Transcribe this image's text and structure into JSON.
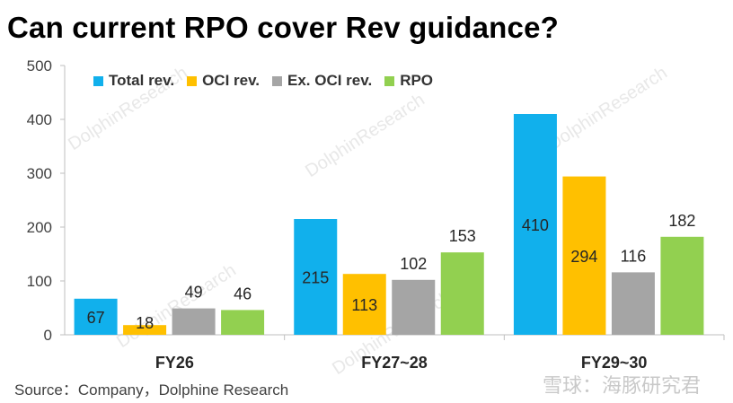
{
  "title": "Can current RPO cover Rev guidance?",
  "source": "Source：Company，Dolphine Research",
  "brand": "雪球：海豚研究君",
  "watermark": "DolphinResearch",
  "chart_data": {
    "type": "bar",
    "categories": [
      "FY26",
      "FY27~28",
      "FY29~30"
    ],
    "series": [
      {
        "name": "Total rev.",
        "color": "#11B0EC",
        "values": [
          67,
          215,
          410
        ],
        "label_inside": true
      },
      {
        "name": "OCI rev.",
        "color": "#FFC000",
        "values": [
          18,
          113,
          294
        ],
        "label_inside": true
      },
      {
        "name": "Ex. OCI rev.",
        "color": "#A5A5A5",
        "values": [
          49,
          102,
          116
        ],
        "label_inside": false
      },
      {
        "name": "RPO",
        "color": "#92D050",
        "values": [
          46,
          153,
          182
        ],
        "label_inside": false
      }
    ],
    "ylim": [
      0,
      500
    ],
    "yticks": [
      0,
      100,
      200,
      300,
      400,
      500
    ],
    "legend_position": "top-left",
    "grid": false
  }
}
